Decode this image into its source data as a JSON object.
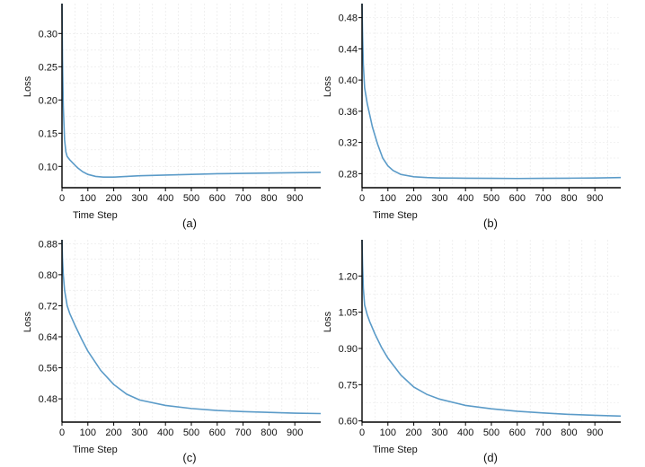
{
  "chart_data": [
    {
      "type": "line",
      "label": "(a)",
      "xlabel": "Time Step",
      "ylabel": "Loss",
      "xlim": [
        0,
        1000
      ],
      "ylim": [
        0.068,
        0.345
      ],
      "xticks": [
        0,
        100,
        200,
        300,
        400,
        500,
        600,
        700,
        800,
        900
      ],
      "yticks": [
        0.1,
        0.15,
        0.2,
        0.25,
        0.3
      ],
      "ytick_labels": [
        "0.10",
        "0.15",
        "0.20",
        "0.25",
        "0.30"
      ],
      "color": "#5b9bc8",
      "series": [
        {
          "name": "Loss",
          "x": [
            0,
            2,
            5,
            10,
            15,
            20,
            30,
            40,
            60,
            80,
            100,
            130,
            160,
            200,
            250,
            300,
            400,
            500,
            600,
            700,
            800,
            900,
            1000
          ],
          "y": [
            0.345,
            0.26,
            0.19,
            0.14,
            0.122,
            0.115,
            0.11,
            0.106,
            0.098,
            0.092,
            0.088,
            0.085,
            0.084,
            0.084,
            0.085,
            0.086,
            0.087,
            0.088,
            0.089,
            0.0895,
            0.09,
            0.0905,
            0.091
          ]
        }
      ]
    },
    {
      "type": "line",
      "label": "(b)",
      "xlabel": "Time Step",
      "ylabel": "Loss",
      "xlim": [
        0,
        1000
      ],
      "ylim": [
        0.262,
        0.498
      ],
      "xticks": [
        0,
        100,
        200,
        300,
        400,
        500,
        600,
        700,
        800,
        900
      ],
      "yticks": [
        0.28,
        0.32,
        0.36,
        0.4,
        0.44,
        0.48
      ],
      "ytick_labels": [
        "0.28",
        "0.32",
        "0.36",
        "0.40",
        "0.44",
        "0.48"
      ],
      "color": "#5b9bc8",
      "series": [
        {
          "name": "Loss",
          "x": [
            0,
            2,
            5,
            10,
            20,
            30,
            40,
            60,
            80,
            100,
            120,
            150,
            200,
            250,
            300,
            400,
            500,
            600,
            700,
            800,
            900,
            1000
          ],
          "y": [
            0.498,
            0.46,
            0.42,
            0.39,
            0.37,
            0.355,
            0.34,
            0.318,
            0.3,
            0.29,
            0.284,
            0.279,
            0.276,
            0.275,
            0.2745,
            0.2742,
            0.274,
            0.2738,
            0.274,
            0.2742,
            0.2745,
            0.275
          ]
        }
      ]
    },
    {
      "type": "line",
      "label": "(c)",
      "xlabel": "Time Step",
      "ylabel": "Loss",
      "xlim": [
        0,
        1000
      ],
      "ylim": [
        0.42,
        0.89
      ],
      "xticks": [
        0,
        100,
        200,
        300,
        400,
        500,
        600,
        700,
        800,
        900
      ],
      "yticks": [
        0.48,
        0.56,
        0.64,
        0.72,
        0.8,
        0.88
      ],
      "ytick_labels": [
        "0.48",
        "0.56",
        "0.64",
        "0.72",
        "0.80",
        "0.88"
      ],
      "color": "#5b9bc8",
      "series": [
        {
          "name": "Loss",
          "x": [
            0,
            2,
            5,
            10,
            20,
            30,
            50,
            75,
            100,
            150,
            200,
            250,
            300,
            400,
            500,
            600,
            700,
            800,
            900,
            1000
          ],
          "y": [
            0.89,
            0.84,
            0.8,
            0.76,
            0.72,
            0.7,
            0.67,
            0.635,
            0.603,
            0.553,
            0.517,
            0.492,
            0.477,
            0.463,
            0.455,
            0.45,
            0.447,
            0.445,
            0.443,
            0.442
          ]
        }
      ]
    },
    {
      "type": "line",
      "label": "(d)",
      "xlabel": "Time Step",
      "ylabel": "Loss",
      "xlim": [
        0,
        1000
      ],
      "ylim": [
        0.595,
        1.35
      ],
      "xticks": [
        0,
        100,
        200,
        300,
        400,
        500,
        600,
        700,
        800,
        900
      ],
      "yticks": [
        0.6,
        0.75,
        0.9,
        1.05,
        1.2
      ],
      "ytick_labels": [
        "0.60",
        "0.75",
        "0.90",
        "1.05",
        "1.20"
      ],
      "color": "#5b9bc8",
      "series": [
        {
          "name": "Loss",
          "x": [
            0,
            2,
            5,
            10,
            20,
            30,
            50,
            75,
            100,
            150,
            200,
            250,
            300,
            400,
            500,
            600,
            700,
            800,
            900,
            1000
          ],
          "y": [
            1.35,
            1.25,
            1.15,
            1.08,
            1.04,
            1.01,
            0.96,
            0.905,
            0.86,
            0.79,
            0.74,
            0.71,
            0.69,
            0.664,
            0.65,
            0.64,
            0.633,
            0.627,
            0.623,
            0.62
          ]
        }
      ]
    }
  ]
}
